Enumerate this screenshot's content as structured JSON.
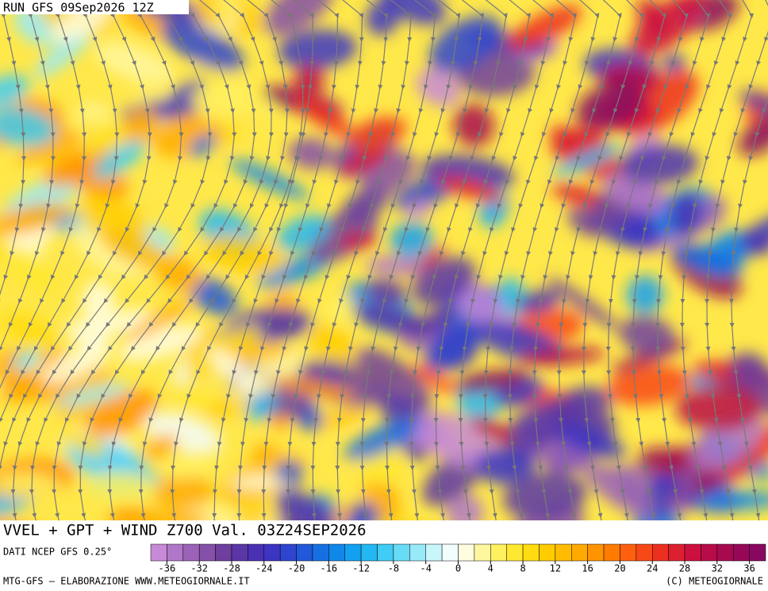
{
  "header": {
    "run": "RUN GFS 09Sep2026 12Z"
  },
  "title": "VVEL + GPT + WIND Z700 Val. 03Z24SEP2026",
  "source": "DATI NCEP GFS 0.25°",
  "colorbar": {
    "min": -38,
    "max": 38,
    "ticks": [
      -36,
      -32,
      -28,
      -24,
      -20,
      -16,
      -12,
      -8,
      -4,
      0,
      4,
      8,
      12,
      16,
      20,
      24,
      28,
      32,
      36
    ],
    "colors": [
      "#c78ad6",
      "#b077c8",
      "#9a63b8",
      "#8450a8",
      "#6e3f9e",
      "#5a36a6",
      "#4a31b4",
      "#3c35c2",
      "#2f45cf",
      "#2258da",
      "#1670e2",
      "#1088ea",
      "#14a0f0",
      "#24b8f2",
      "#40ccf4",
      "#68dcf6",
      "#98eaf8",
      "#c8f6fa",
      "#f4fdfd",
      "#fffde0",
      "#fff7a0",
      "#fff060",
      "#ffe830",
      "#ffdc10",
      "#ffcc00",
      "#ffbc00",
      "#ffaa00",
      "#ff9400",
      "#ff7c00",
      "#ff6010",
      "#f84818",
      "#ec3020",
      "#dc2030",
      "#cc1040",
      "#b80c48",
      "#a80a50",
      "#980858",
      "#880860"
    ]
  },
  "footer": {
    "left": "MTG-GFS – ELABORAZIONE WWW.METEOGIORNALE.IT",
    "right": "(C) METEOGIORNALE"
  }
}
